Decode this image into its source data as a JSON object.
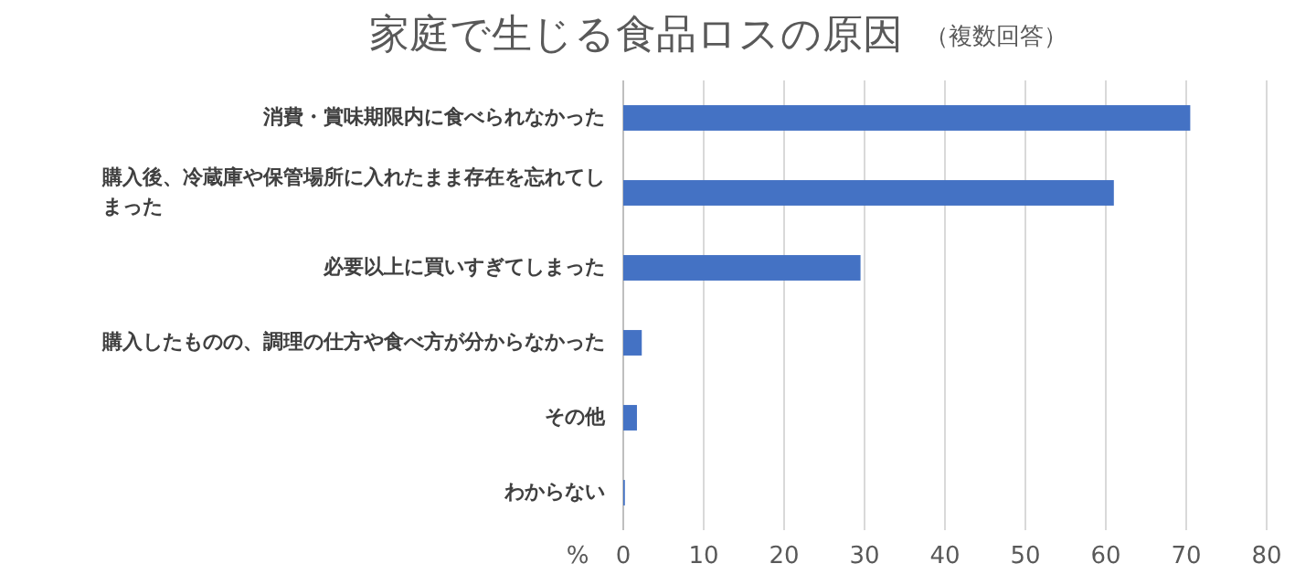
{
  "chart_data": {
    "type": "bar",
    "orientation": "horizontal",
    "title": "家庭で生じる食品ロスの原因",
    "subtitle": "（複数回答）",
    "xlabel": "%",
    "categories": [
      "消費・賞味期限内に食べられなかった",
      "購入後、冷蔵庫や保管場所に入れたまま存在を忘れてしまった",
      "必要以上に買いすぎてしまった",
      "購入したものの、調理の仕方や食べ方が分からなかった",
      "その他",
      "わからない"
    ],
    "values": [
      70.5,
      61,
      29.5,
      2.3,
      1.7,
      0.2
    ],
    "color": "#4472c4",
    "xlim": [
      0,
      80
    ],
    "xticks": [
      0,
      10,
      20,
      30,
      40,
      50,
      60,
      70,
      80
    ],
    "grid": "x"
  }
}
